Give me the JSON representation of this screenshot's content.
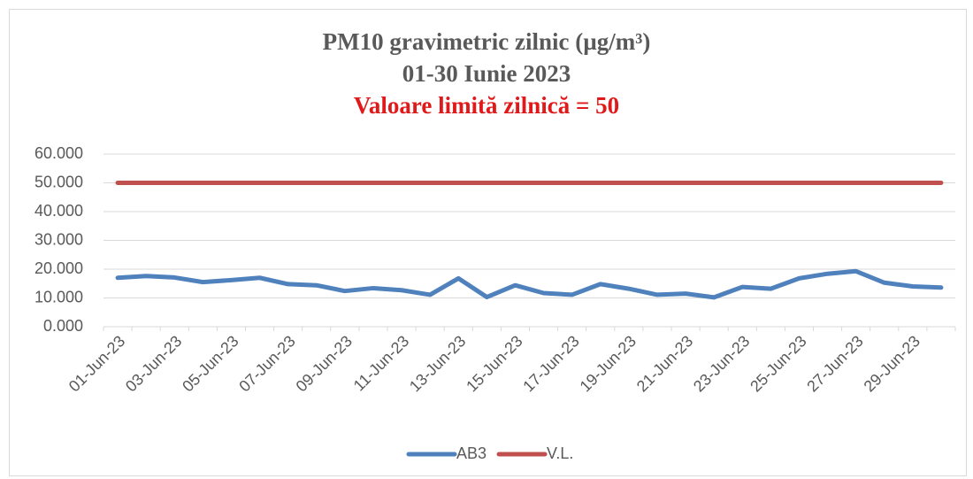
{
  "chart_data": {
    "type": "line",
    "title": [
      "PM10 gravimetric zilnic (µg/m³)",
      "01-30 Iunie 2023",
      "Valoare limită zilnică = 50"
    ],
    "title_colors": [
      "#595959",
      "#595959",
      "#e0191b"
    ],
    "categories": [
      "01-Jun-23",
      null,
      "03-Jun-23",
      null,
      "05-Jun-23",
      null,
      "07-Jun-23",
      null,
      "09-Jun-23",
      null,
      "11-Jun-23",
      null,
      "13-Jun-23",
      null,
      "15-Jun-23",
      null,
      "17-Jun-23",
      null,
      "19-Jun-23",
      null,
      "21-Jun-23",
      null,
      "23-Jun-23",
      null,
      "25-Jun-23",
      null,
      "27-Jun-23",
      null,
      "29-Jun-23",
      null
    ],
    "series": [
      {
        "name": "AB3",
        "color": "#4f81bd",
        "values": [
          17.0,
          17.6,
          17.1,
          15.5,
          16.2,
          17.0,
          14.8,
          14.4,
          12.4,
          13.4,
          12.7,
          11.1,
          16.8,
          10.3,
          14.4,
          11.7,
          11.1,
          14.8,
          13.2,
          11.1,
          11.5,
          10.2,
          13.8,
          13.2,
          16.8,
          18.4,
          19.3,
          15.3,
          14.0,
          13.6
        ]
      },
      {
        "name": "V.L.",
        "color": "#c0504d",
        "values": [
          50,
          50,
          50,
          50,
          50,
          50,
          50,
          50,
          50,
          50,
          50,
          50,
          50,
          50,
          50,
          50,
          50,
          50,
          50,
          50,
          50,
          50,
          50,
          50,
          50,
          50,
          50,
          50,
          50,
          50
        ]
      }
    ],
    "ylim": [
      0,
      60
    ],
    "yticks": [
      {
        "value": 0,
        "label": "0.000"
      },
      {
        "value": 10,
        "label": "10.000"
      },
      {
        "value": 20,
        "label": "20.000"
      },
      {
        "value": 30,
        "label": "30.000"
      },
      {
        "value": 40,
        "label": "40.000"
      },
      {
        "value": 50,
        "label": "50.000"
      },
      {
        "value": 60,
        "label": "60.000"
      }
    ],
    "grid": true,
    "legend": "bottom"
  }
}
